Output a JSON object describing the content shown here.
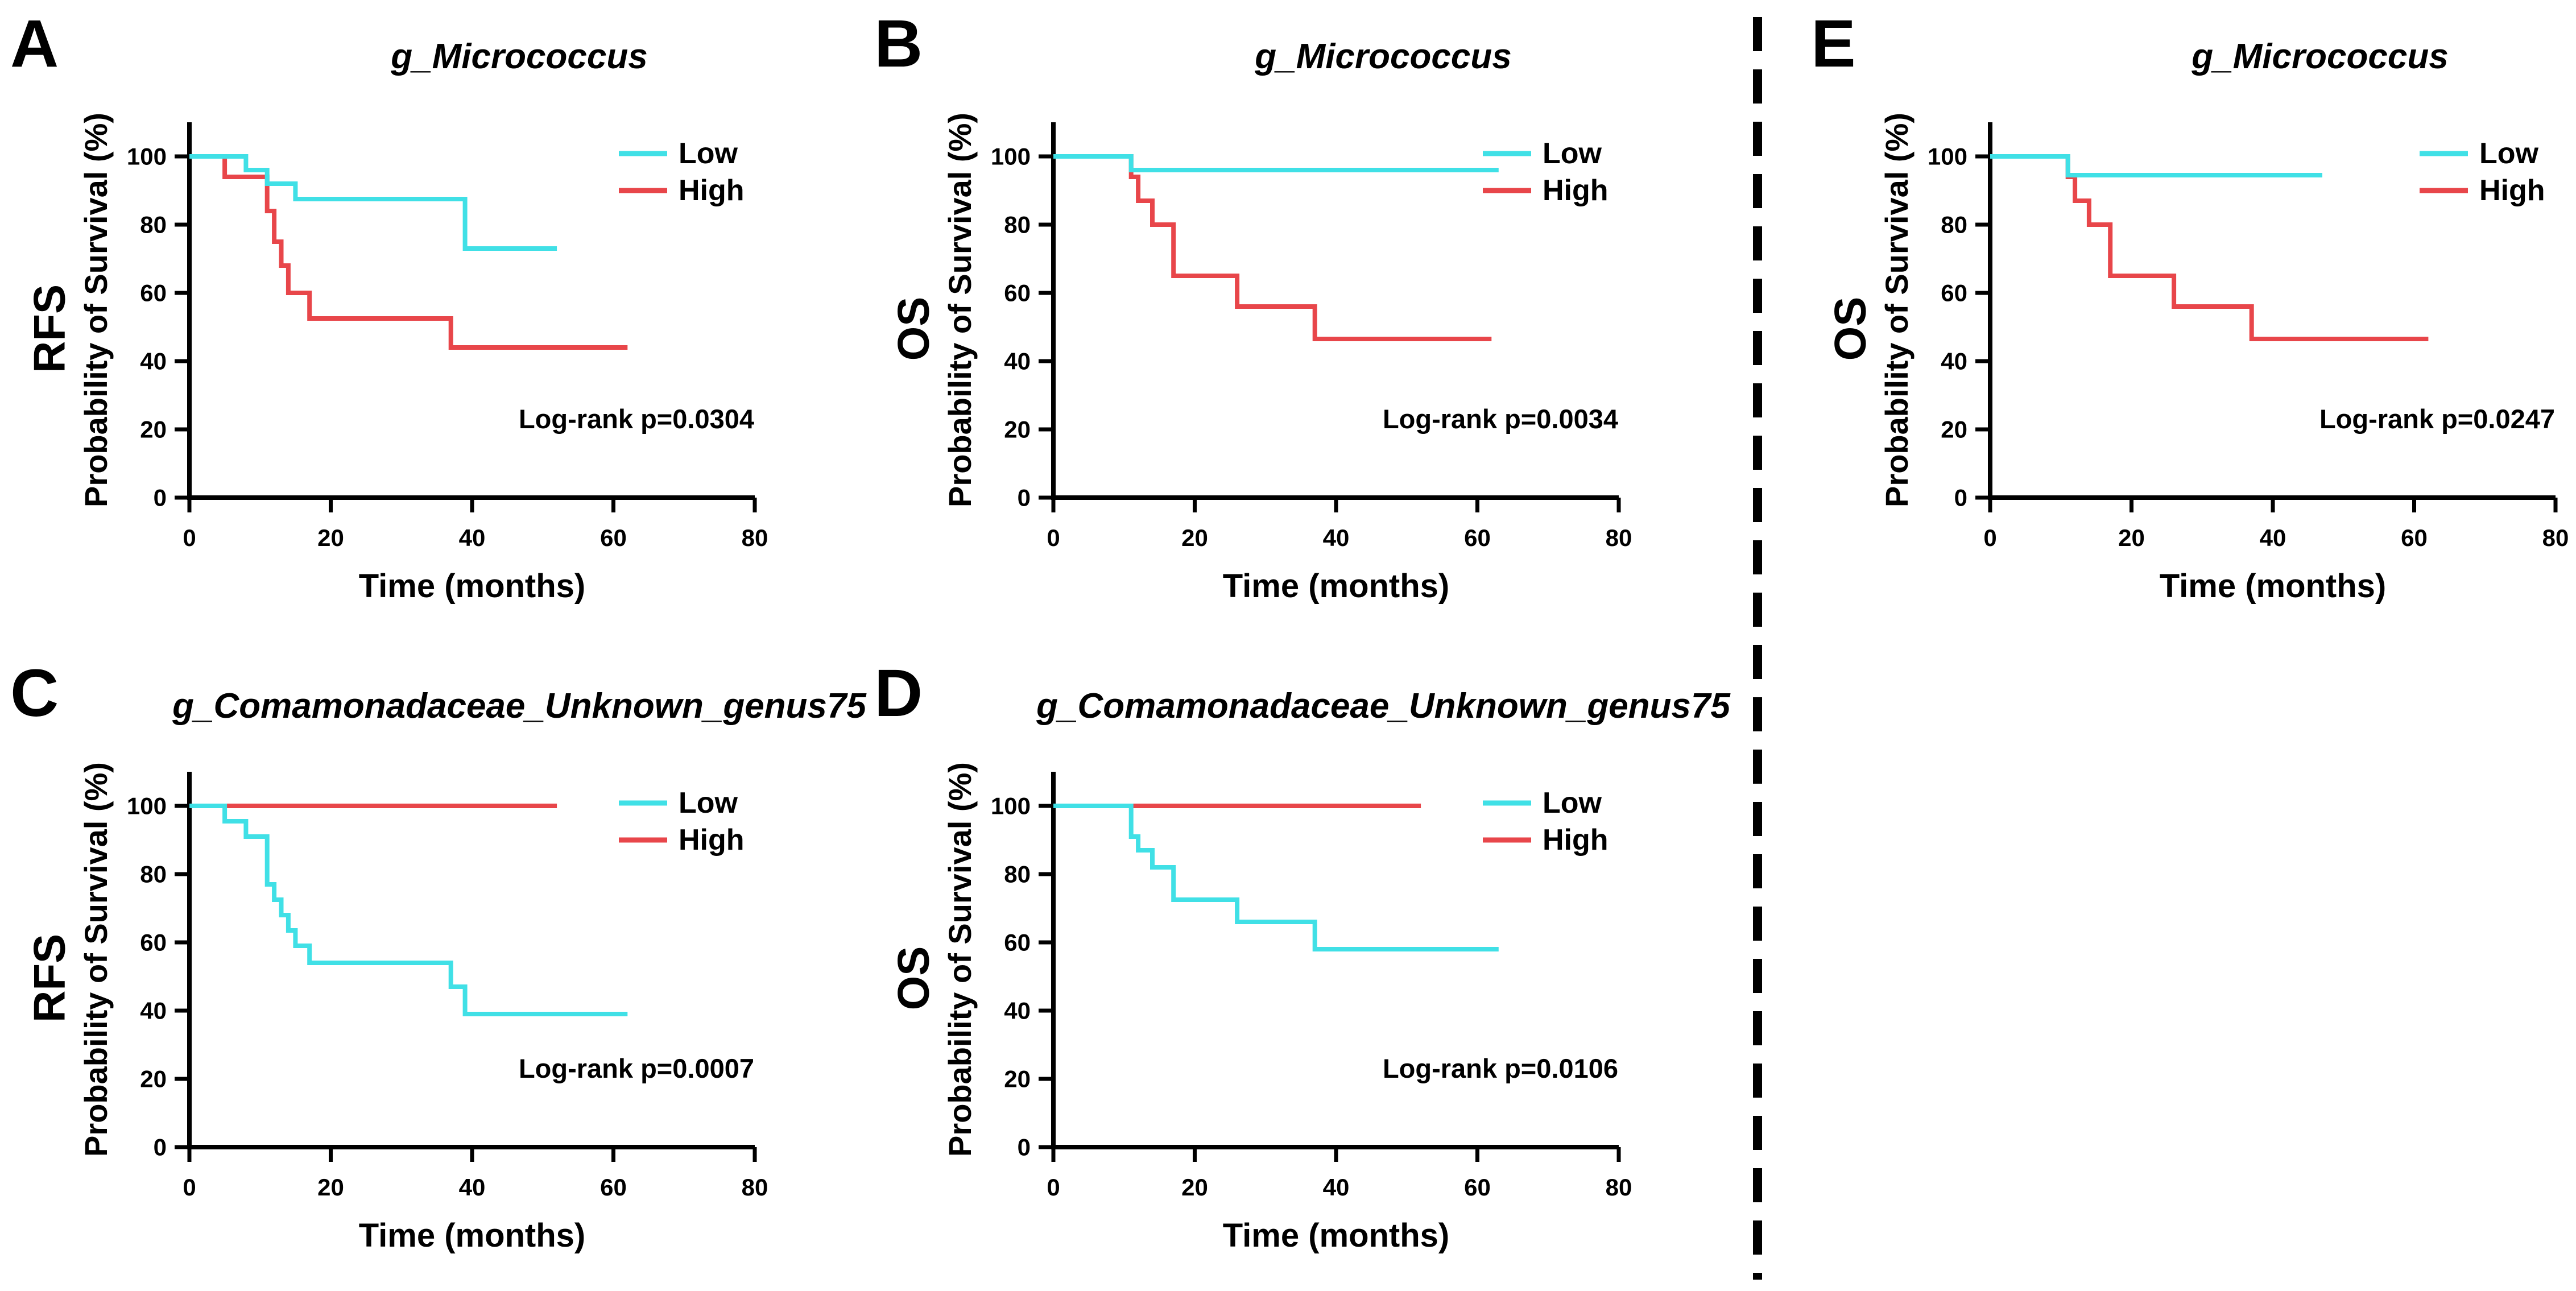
{
  "colors": {
    "low": "#40E0E6",
    "high": "#E8464A"
  },
  "chart_data": [
    {
      "panel": "A",
      "type": "line",
      "title": "g_Micrococcus",
      "endpoint": "RFS",
      "ylabel": "Probability of Survival (%)",
      "xlabel": "Time (months)",
      "xlim": [
        0,
        80
      ],
      "ylim": [
        0,
        110
      ],
      "xticks": [
        "0",
        "20",
        "40",
        "60",
        "80"
      ],
      "yticks": [
        "0",
        "20",
        "40",
        "60",
        "80",
        "100"
      ],
      "legend": [
        "Low",
        "High"
      ],
      "pvalue_text": "Log-rank p=0.0304",
      "series": [
        {
          "name": "Low",
          "color_key": "low",
          "points": [
            [
              0,
              100
            ],
            [
              8,
              100
            ],
            [
              8,
              96
            ],
            [
              11,
              96
            ],
            [
              11,
              92
            ],
            [
              15,
              92
            ],
            [
              15,
              87.5
            ],
            [
              39,
              87.5
            ],
            [
              39,
              73
            ],
            [
              52,
              73
            ]
          ]
        },
        {
          "name": "High",
          "color_key": "high",
          "points": [
            [
              0,
              100
            ],
            [
              5,
              100
            ],
            [
              5,
              94
            ],
            [
              11,
              94
            ],
            [
              11,
              84
            ],
            [
              12,
              84
            ],
            [
              12,
              75
            ],
            [
              13,
              75
            ],
            [
              13,
              68
            ],
            [
              14,
              68
            ],
            [
              14,
              60
            ],
            [
              17,
              60
            ],
            [
              17,
              52.5
            ],
            [
              37,
              52.5
            ],
            [
              37,
              44
            ],
            [
              62,
              44
            ]
          ]
        }
      ]
    },
    {
      "panel": "B",
      "type": "line",
      "title": "g_Micrococcus",
      "endpoint": "OS",
      "ylabel": "Probability of Survival (%)",
      "xlabel": "Time (months)",
      "xlim": [
        0,
        80
      ],
      "ylim": [
        0,
        110
      ],
      "xticks": [
        "0",
        "20",
        "40",
        "60",
        "80"
      ],
      "yticks": [
        "0",
        "20",
        "40",
        "60",
        "80",
        "100"
      ],
      "legend": [
        "Low",
        "High"
      ],
      "pvalue_text": "Log-rank p=0.0034",
      "series": [
        {
          "name": "Low",
          "color_key": "low",
          "points": [
            [
              0,
              100
            ],
            [
              11,
              100
            ],
            [
              11,
              96
            ],
            [
              63,
              96
            ]
          ]
        },
        {
          "name": "High",
          "color_key": "high",
          "points": [
            [
              0,
              100
            ],
            [
              11,
              100
            ],
            [
              11,
              94
            ],
            [
              12,
              94
            ],
            [
              12,
              87
            ],
            [
              14,
              87
            ],
            [
              14,
              80
            ],
            [
              17,
              80
            ],
            [
              17,
              65
            ],
            [
              26,
              65
            ],
            [
              26,
              56
            ],
            [
              37,
              56
            ],
            [
              37,
              46.5
            ],
            [
              62,
              46.5
            ]
          ]
        }
      ]
    },
    {
      "panel": "C",
      "type": "line",
      "title": "g_Comamonadaceae_Unknown_genus75",
      "endpoint": "RFS",
      "ylabel": "Probability of Survival (%)",
      "xlabel": "Time (months)",
      "xlim": [
        0,
        80
      ],
      "ylim": [
        0,
        110
      ],
      "xticks": [
        "0",
        "20",
        "40",
        "60",
        "80"
      ],
      "yticks": [
        "0",
        "20",
        "40",
        "60",
        "80",
        "100"
      ],
      "legend": [
        "Low",
        "High"
      ],
      "pvalue_text": "Log-rank p=0.0007",
      "series": [
        {
          "name": "Low",
          "color_key": "low",
          "points": [
            [
              0,
              100
            ],
            [
              5,
              100
            ],
            [
              5,
              95.5
            ],
            [
              8,
              95.5
            ],
            [
              8,
              91
            ],
            [
              11,
              91
            ],
            [
              11,
              77
            ],
            [
              12,
              77
            ],
            [
              12,
              72.5
            ],
            [
              13,
              72.5
            ],
            [
              13,
              68
            ],
            [
              14,
              68
            ],
            [
              14,
              63.5
            ],
            [
              15,
              63.5
            ],
            [
              15,
              59
            ],
            [
              17,
              59
            ],
            [
              17,
              54
            ],
            [
              37,
              54
            ],
            [
              37,
              47
            ],
            [
              39,
              47
            ],
            [
              39,
              39
            ],
            [
              62,
              39
            ]
          ]
        },
        {
          "name": "High",
          "color_key": "high",
          "points": [
            [
              0,
              100
            ],
            [
              52,
              100
            ]
          ]
        }
      ]
    },
    {
      "panel": "D",
      "type": "line",
      "title": "g_Comamonadaceae_Unknown_genus75",
      "endpoint": "OS",
      "ylabel": "Probability of Survival (%)",
      "xlabel": "Time (months)",
      "xlim": [
        0,
        80
      ],
      "ylim": [
        0,
        110
      ],
      "xticks": [
        "0",
        "20",
        "40",
        "60",
        "80"
      ],
      "yticks": [
        "0",
        "20",
        "40",
        "60",
        "80",
        "100"
      ],
      "legend": [
        "Low",
        "High"
      ],
      "pvalue_text": "Log-rank p=0.0106",
      "series": [
        {
          "name": "Low",
          "color_key": "low",
          "points": [
            [
              0,
              100
            ],
            [
              11,
              100
            ],
            [
              11,
              91
            ],
            [
              12,
              91
            ],
            [
              12,
              87
            ],
            [
              14,
              87
            ],
            [
              14,
              82
            ],
            [
              17,
              82
            ],
            [
              17,
              72.5
            ],
            [
              26,
              72.5
            ],
            [
              26,
              66
            ],
            [
              37,
              66
            ],
            [
              37,
              58
            ],
            [
              63,
              58
            ]
          ]
        },
        {
          "name": "High",
          "color_key": "high",
          "points": [
            [
              0,
              100
            ],
            [
              52,
              100
            ]
          ]
        }
      ]
    },
    {
      "panel": "E",
      "type": "line",
      "title": "g_Micrococcus",
      "endpoint": "OS",
      "ylabel": "Probability of Survival (%)",
      "xlabel": "Time (months)",
      "xlim": [
        0,
        80
      ],
      "ylim": [
        0,
        110
      ],
      "xticks": [
        "0",
        "20",
        "40",
        "60",
        "80"
      ],
      "yticks": [
        "0",
        "20",
        "40",
        "60",
        "80",
        "100"
      ],
      "legend": [
        "Low",
        "High"
      ],
      "pvalue_text": "Log-rank p=0.0247",
      "series": [
        {
          "name": "Low",
          "color_key": "low",
          "points": [
            [
              0,
              100
            ],
            [
              11,
              100
            ],
            [
              11,
              94.5
            ],
            [
              47,
              94.5
            ]
          ]
        },
        {
          "name": "High",
          "color_key": "high",
          "points": [
            [
              0,
              100
            ],
            [
              11,
              100
            ],
            [
              11,
              94
            ],
            [
              12,
              94
            ],
            [
              12,
              87
            ],
            [
              14,
              87
            ],
            [
              14,
              80
            ],
            [
              17,
              80
            ],
            [
              17,
              65
            ],
            [
              26,
              65
            ],
            [
              26,
              56
            ],
            [
              37,
              56
            ],
            [
              37,
              46.5
            ],
            [
              62,
              46.5
            ]
          ]
        }
      ]
    }
  ]
}
